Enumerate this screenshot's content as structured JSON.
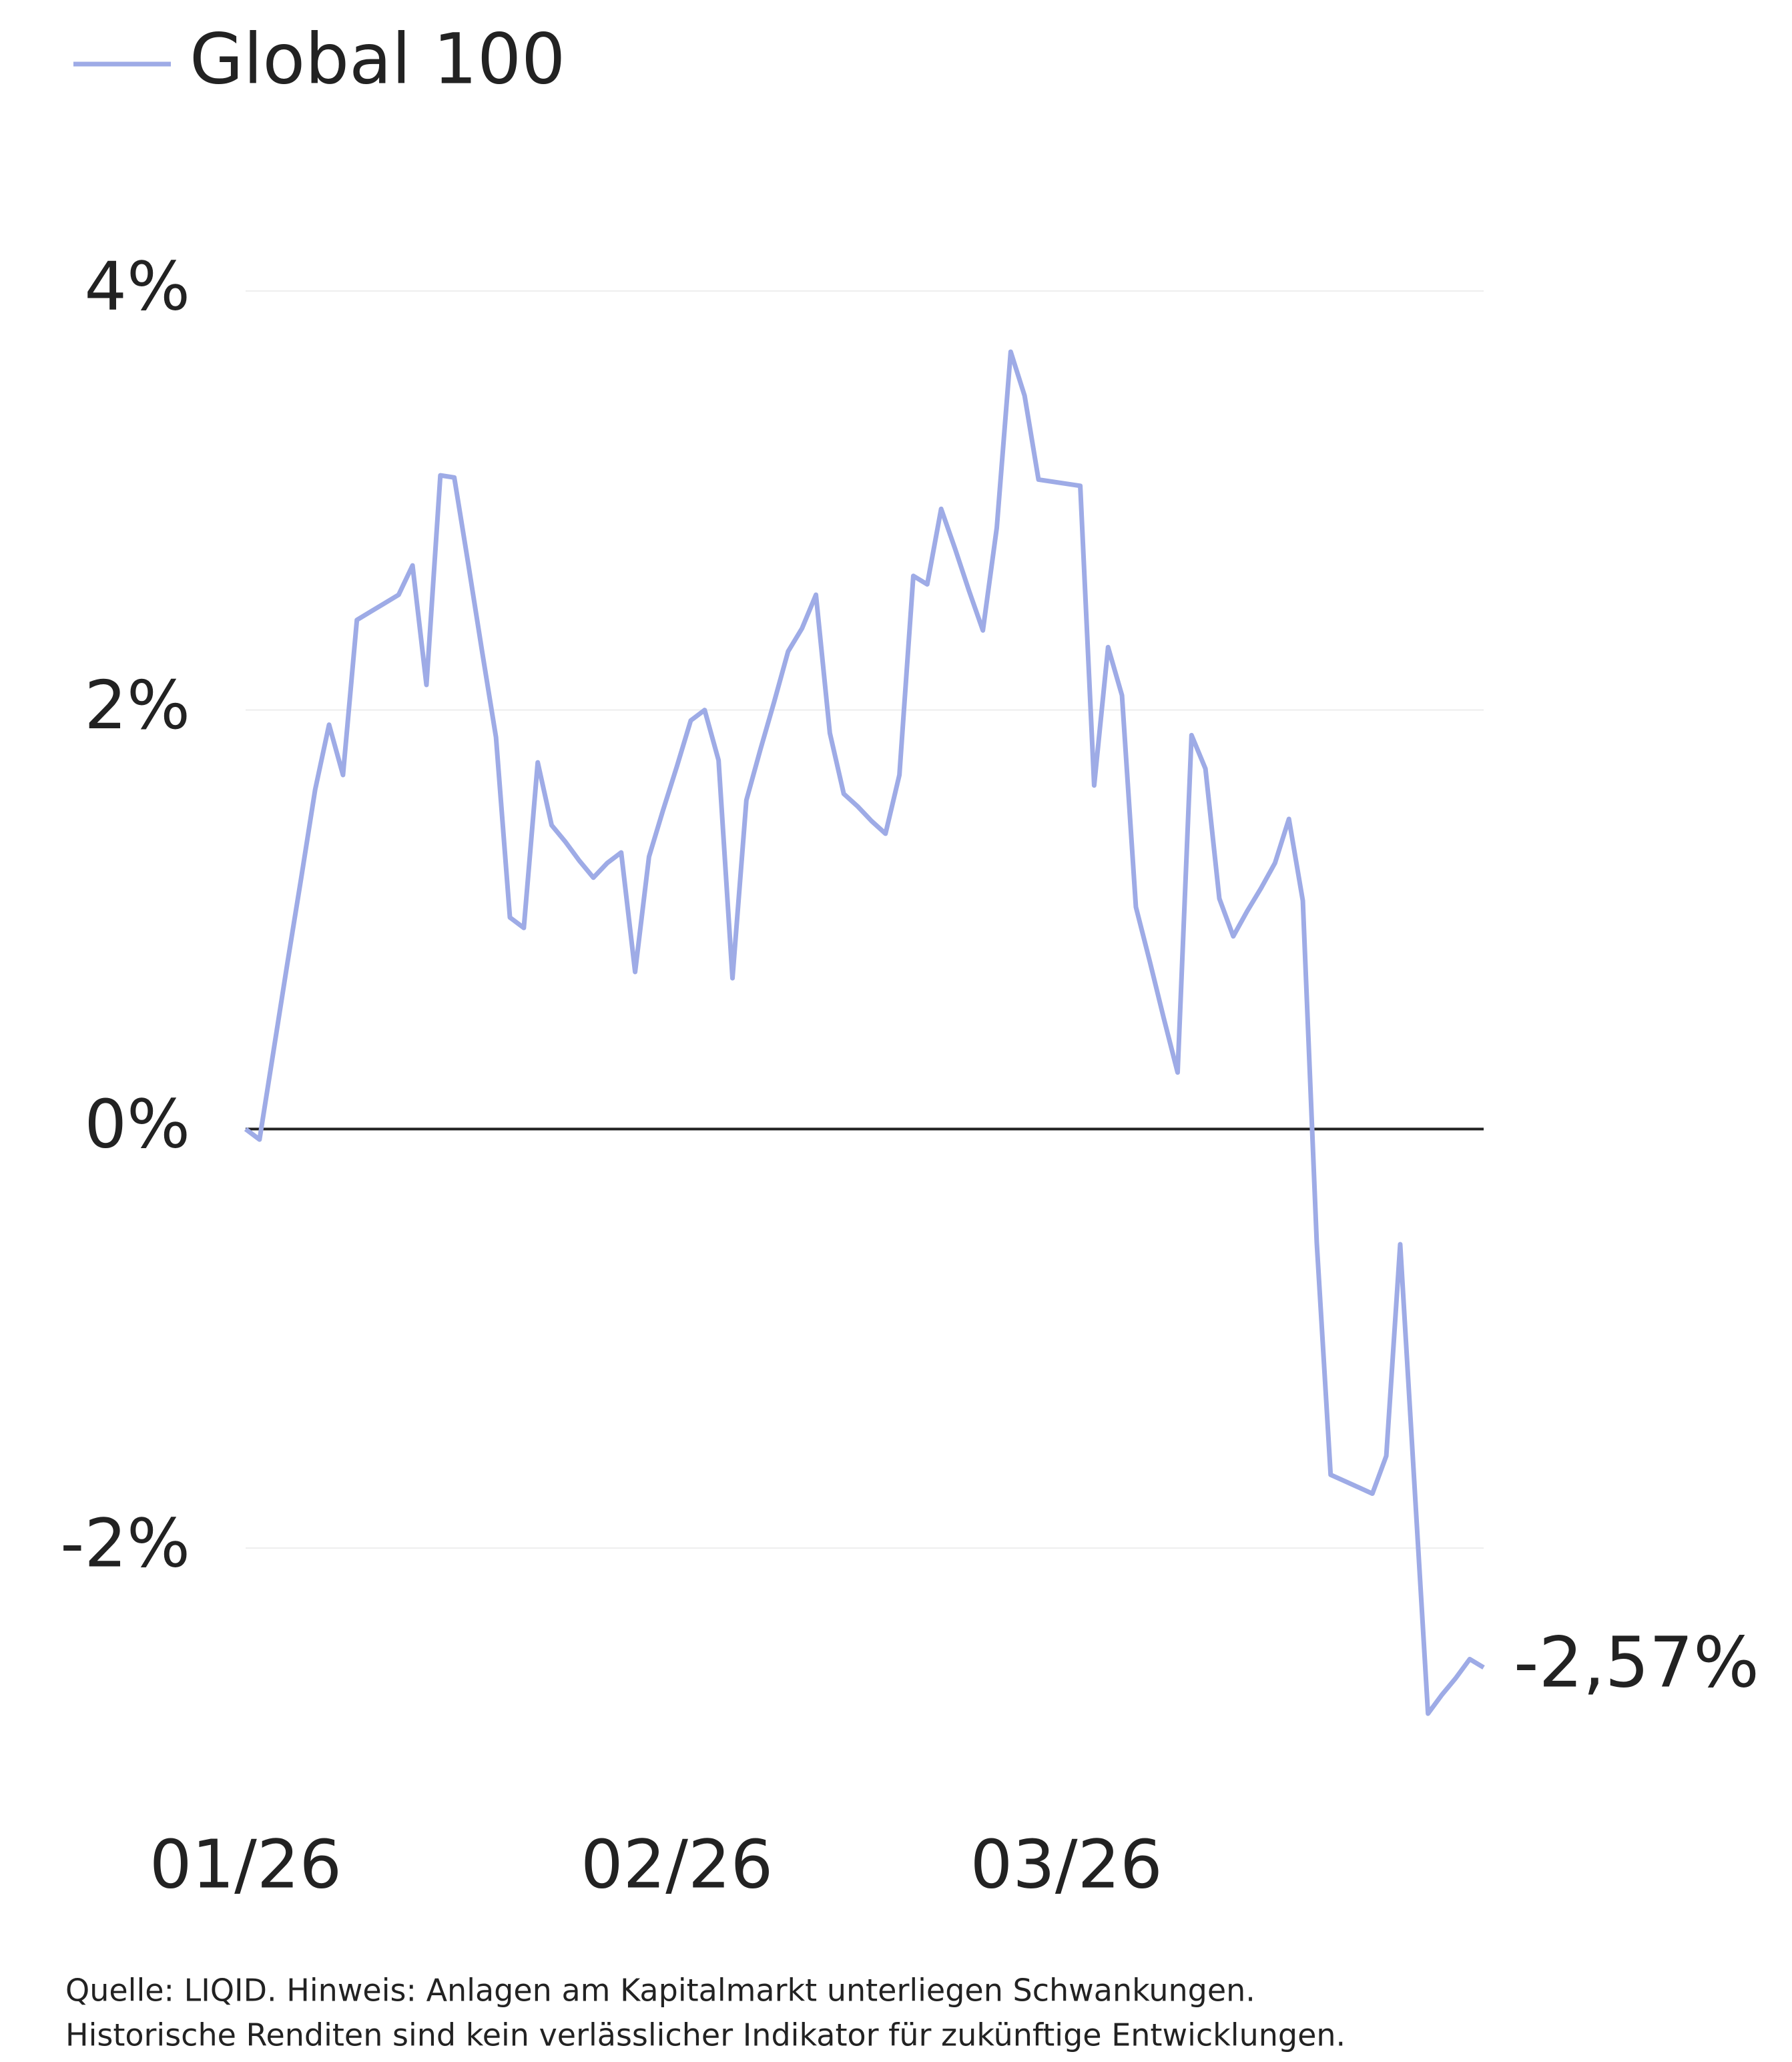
{
  "chart_data": {
    "type": "line",
    "legend": "top-left",
    "grid": true,
    "categories": [
      "01/26",
      null,
      null,
      null,
      null,
      null,
      null,
      null,
      null,
      null,
      null,
      null,
      null,
      null,
      null,
      null,
      null,
      null,
      null,
      null,
      null,
      null,
      null,
      null,
      null,
      null,
      null,
      null,
      null,
      null,
      null,
      "02/26",
      null,
      null,
      null,
      null,
      null,
      null,
      null,
      null,
      null,
      null,
      null,
      null,
      null,
      null,
      null,
      null,
      null,
      null,
      null,
      null,
      null,
      null,
      null,
      null,
      null,
      null,
      null,
      "03/26",
      null,
      null,
      null,
      null,
      null,
      null,
      null,
      null,
      null,
      null,
      null,
      null,
      null,
      null,
      null,
      null,
      null,
      null,
      null,
      null,
      null,
      null,
      null,
      null,
      null,
      null,
      null,
      null,
      null,
      null
    ],
    "series": [
      {
        "name": "Global 100",
        "color": "#9eabe6",
        "values": [
          0,
          -0.05,
          0.37,
          0.79,
          1.2,
          1.62,
          1.93,
          1.69,
          2.43,
          2.47,
          2.51,
          2.55,
          2.69,
          2.12,
          3.12,
          3.11,
          2.7,
          2.28,
          1.87,
          1.01,
          0.96,
          1.75,
          1.45,
          1.37,
          1.28,
          1.2,
          1.27,
          1.32,
          0.75,
          1.3,
          1.52,
          1.73,
          1.95,
          2.0,
          1.76,
          0.72,
          1.57,
          1.81,
          2.04,
          2.28,
          2.39,
          2.55,
          1.89,
          1.6,
          1.54,
          1.47,
          1.41,
          1.69,
          2.64,
          2.6,
          2.96,
          2.77,
          2.57,
          2.38,
          2.87,
          3.71,
          3.5,
          3.1,
          3.09,
          3.08,
          3.07,
          1.64,
          2.3,
          2.07,
          1.06,
          0.8,
          0.53,
          0.27,
          1.88,
          1.72,
          1.1,
          0.92,
          1.04,
          1.15,
          1.27,
          1.48,
          1.09,
          -0.54,
          -1.65,
          -1.68,
          -1.71,
          -1.74,
          -1.56,
          -0.55,
          -1.67,
          -2.79,
          -2.7,
          -2.62,
          -2.53,
          -2.57
        ],
        "value_labels": [
          null,
          null,
          null,
          null,
          null,
          null,
          null,
          null,
          null,
          null,
          null,
          null,
          null,
          null,
          null,
          null,
          null,
          null,
          null,
          null,
          null,
          null,
          null,
          null,
          null,
          null,
          null,
          null,
          null,
          null,
          null,
          null,
          null,
          null,
          null,
          null,
          null,
          null,
          null,
          null,
          null,
          null,
          null,
          null,
          null,
          null,
          null,
          null,
          null,
          null,
          null,
          null,
          null,
          null,
          null,
          null,
          null,
          null,
          null,
          null,
          null,
          null,
          null,
          null,
          null,
          null,
          null,
          null,
          null,
          null,
          null,
          null,
          null,
          null,
          null,
          null,
          null,
          null,
          null,
          null,
          null,
          null,
          null,
          null,
          null,
          null,
          null,
          null,
          null,
          "-2,57%"
        ]
      }
    ],
    "ylim": [
      -3,
      4.5
    ],
    "yticks": [
      {
        "value": 4,
        "label": "4%"
      },
      {
        "value": 2,
        "label": "2%"
      },
      {
        "value": 0,
        "label": "0%"
      },
      {
        "value": -2,
        "label": "-2%"
      }
    ],
    "source_note": [
      "Quelle: LIQID. Hinweis: Anlagen am Kapitalmarkt unterliegen Schwankungen.",
      "Historische Renditen sind kein verlässlicher Indikator für zukünftige Entwicklungen."
    ]
  }
}
